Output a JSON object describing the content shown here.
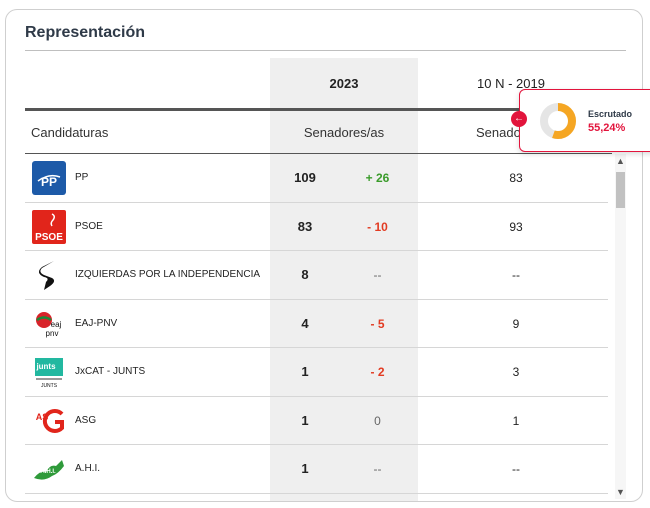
{
  "title": "Representación",
  "headers": {
    "year_current": "2023",
    "year_previous": "10 N - 2019",
    "candidaturas": "Candidaturas",
    "senadores": "Senadores/as",
    "senadores_prev": "Senado"
  },
  "rows": [
    {
      "name": "PP",
      "seats": "109",
      "diff": "+ 26",
      "prev": "83",
      "logo": "pp-logo"
    },
    {
      "name": "PSOE",
      "seats": "83",
      "diff": "- 10",
      "prev": "93",
      "logo": "psoe-logo"
    },
    {
      "name": "IZQUIERDAS POR LA INDEPENDENCIA",
      "seats": "8",
      "diff": "--",
      "prev": "--",
      "logo": "izquierdas-logo"
    },
    {
      "name": "EAJ-PNV",
      "seats": "4",
      "diff": "- 5",
      "prev": "9",
      "logo": "eaj-pnv-logo"
    },
    {
      "name": "JxCAT - JUNTS",
      "seats": "1",
      "diff": "- 2",
      "prev": "3",
      "logo": "junts-logo"
    },
    {
      "name": "ASG",
      "seats": "1",
      "diff": "0",
      "prev": "1",
      "logo": "asg-logo"
    },
    {
      "name": "A.H.I.",
      "seats": "1",
      "diff": "--",
      "prev": "--",
      "logo": "ahi-logo"
    }
  ],
  "escrutado": {
    "label": "Escrutado",
    "value": "55,24%",
    "fraction": 0.5524
  },
  "colors": {
    "accent_red": "#e2143c",
    "positive": "#3a9b2a",
    "negative": "#e23b22",
    "donut": "#f5a623"
  },
  "logo_texts": {
    "pp": "PP",
    "psoe": "PSOE",
    "eaj_line1": "eaj",
    "eaj_line2": "pnv",
    "junts": "junts",
    "junts_sub": "JUNTS",
    "asg": "AS",
    "ahi": "A.H.I."
  }
}
